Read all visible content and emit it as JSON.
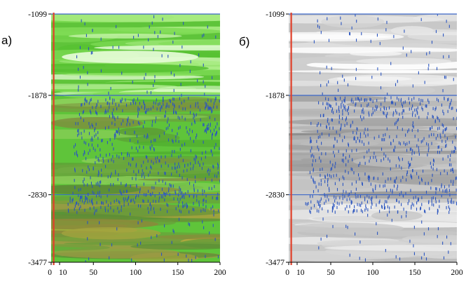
{
  "panels": [
    {
      "letter": "а)",
      "style": "green"
    },
    {
      "letter": "б)",
      "style": "gray"
    }
  ],
  "colors": {
    "reference_line": "#3a66c8",
    "boundary_line": "#e0402a",
    "points": "#2b55c0",
    "green_base": "#5fc43a",
    "gray_base": "#c8c8c8"
  },
  "chart_data": [
    {
      "type": "heatmap",
      "panel": "а)",
      "xlim": [
        0,
        200
      ],
      "ylim": [
        -3477,
        -1099
      ],
      "x_ticks": [
        "0",
        "10",
        "50",
        "100",
        "150",
        "200"
      ],
      "x_tick_values": [
        0,
        10,
        50,
        100,
        150,
        200
      ],
      "y_ticks": [
        "-1099",
        "-1878",
        "-2830",
        "-3477"
      ],
      "y_tick_values": [
        -1099,
        -1878,
        -2830,
        -3477
      ],
      "reference_lines_y": [
        -1099,
        -1878,
        -2830
      ],
      "boundary_line_x": 3
    },
    {
      "type": "heatmap",
      "panel": "б)",
      "xlim": [
        0,
        200
      ],
      "ylim": [
        -3477,
        -1099
      ],
      "x_ticks": [
        "0",
        "10",
        "50",
        "100",
        "150",
        "200"
      ],
      "x_tick_values": [
        0,
        10,
        50,
        100,
        150,
        200
      ],
      "y_ticks": [
        "-1099",
        "-1878",
        "-2830",
        "-3477"
      ],
      "y_tick_values": [
        -1099,
        -1878,
        -2830,
        -3477
      ],
      "reference_lines_y": [
        -1099,
        -1878,
        -2830
      ],
      "boundary_line_x": 3
    }
  ]
}
